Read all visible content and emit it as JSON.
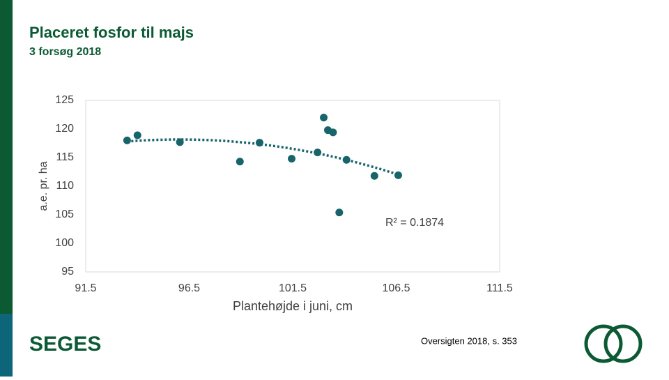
{
  "chart_data": {
    "type": "scatter",
    "title": "Placeret fosfor til majs",
    "subtitle": "3 forsøg 2018",
    "x_label": "Plantehøjde i juni, cm",
    "y_label": "a.e. pr. ha",
    "annotation": "R² = 0.1874",
    "color": "#17646b",
    "trendline": true,
    "x": [
      93.5,
      94.0,
      96.05,
      98.95,
      99.9,
      101.45,
      102.7,
      103.0,
      103.2,
      103.45,
      103.75,
      104.1,
      105.45,
      106.6
    ],
    "values": [
      118.0,
      118.9,
      117.7,
      114.3,
      117.6,
      114.8,
      115.9,
      122.0,
      119.8,
      119.4,
      105.4,
      114.6,
      111.8,
      111.9
    ],
    "xlim": [
      91.5,
      111.5
    ],
    "xticks": [
      91.5,
      96.5,
      101.5,
      106.5,
      111.5
    ],
    "ylim": [
      95,
      125
    ],
    "yticks": [
      95,
      100,
      105,
      110,
      115,
      120,
      125
    ]
  },
  "slide": {
    "logo": "SEGES",
    "source": "Oversigten 2018, s. 353"
  }
}
